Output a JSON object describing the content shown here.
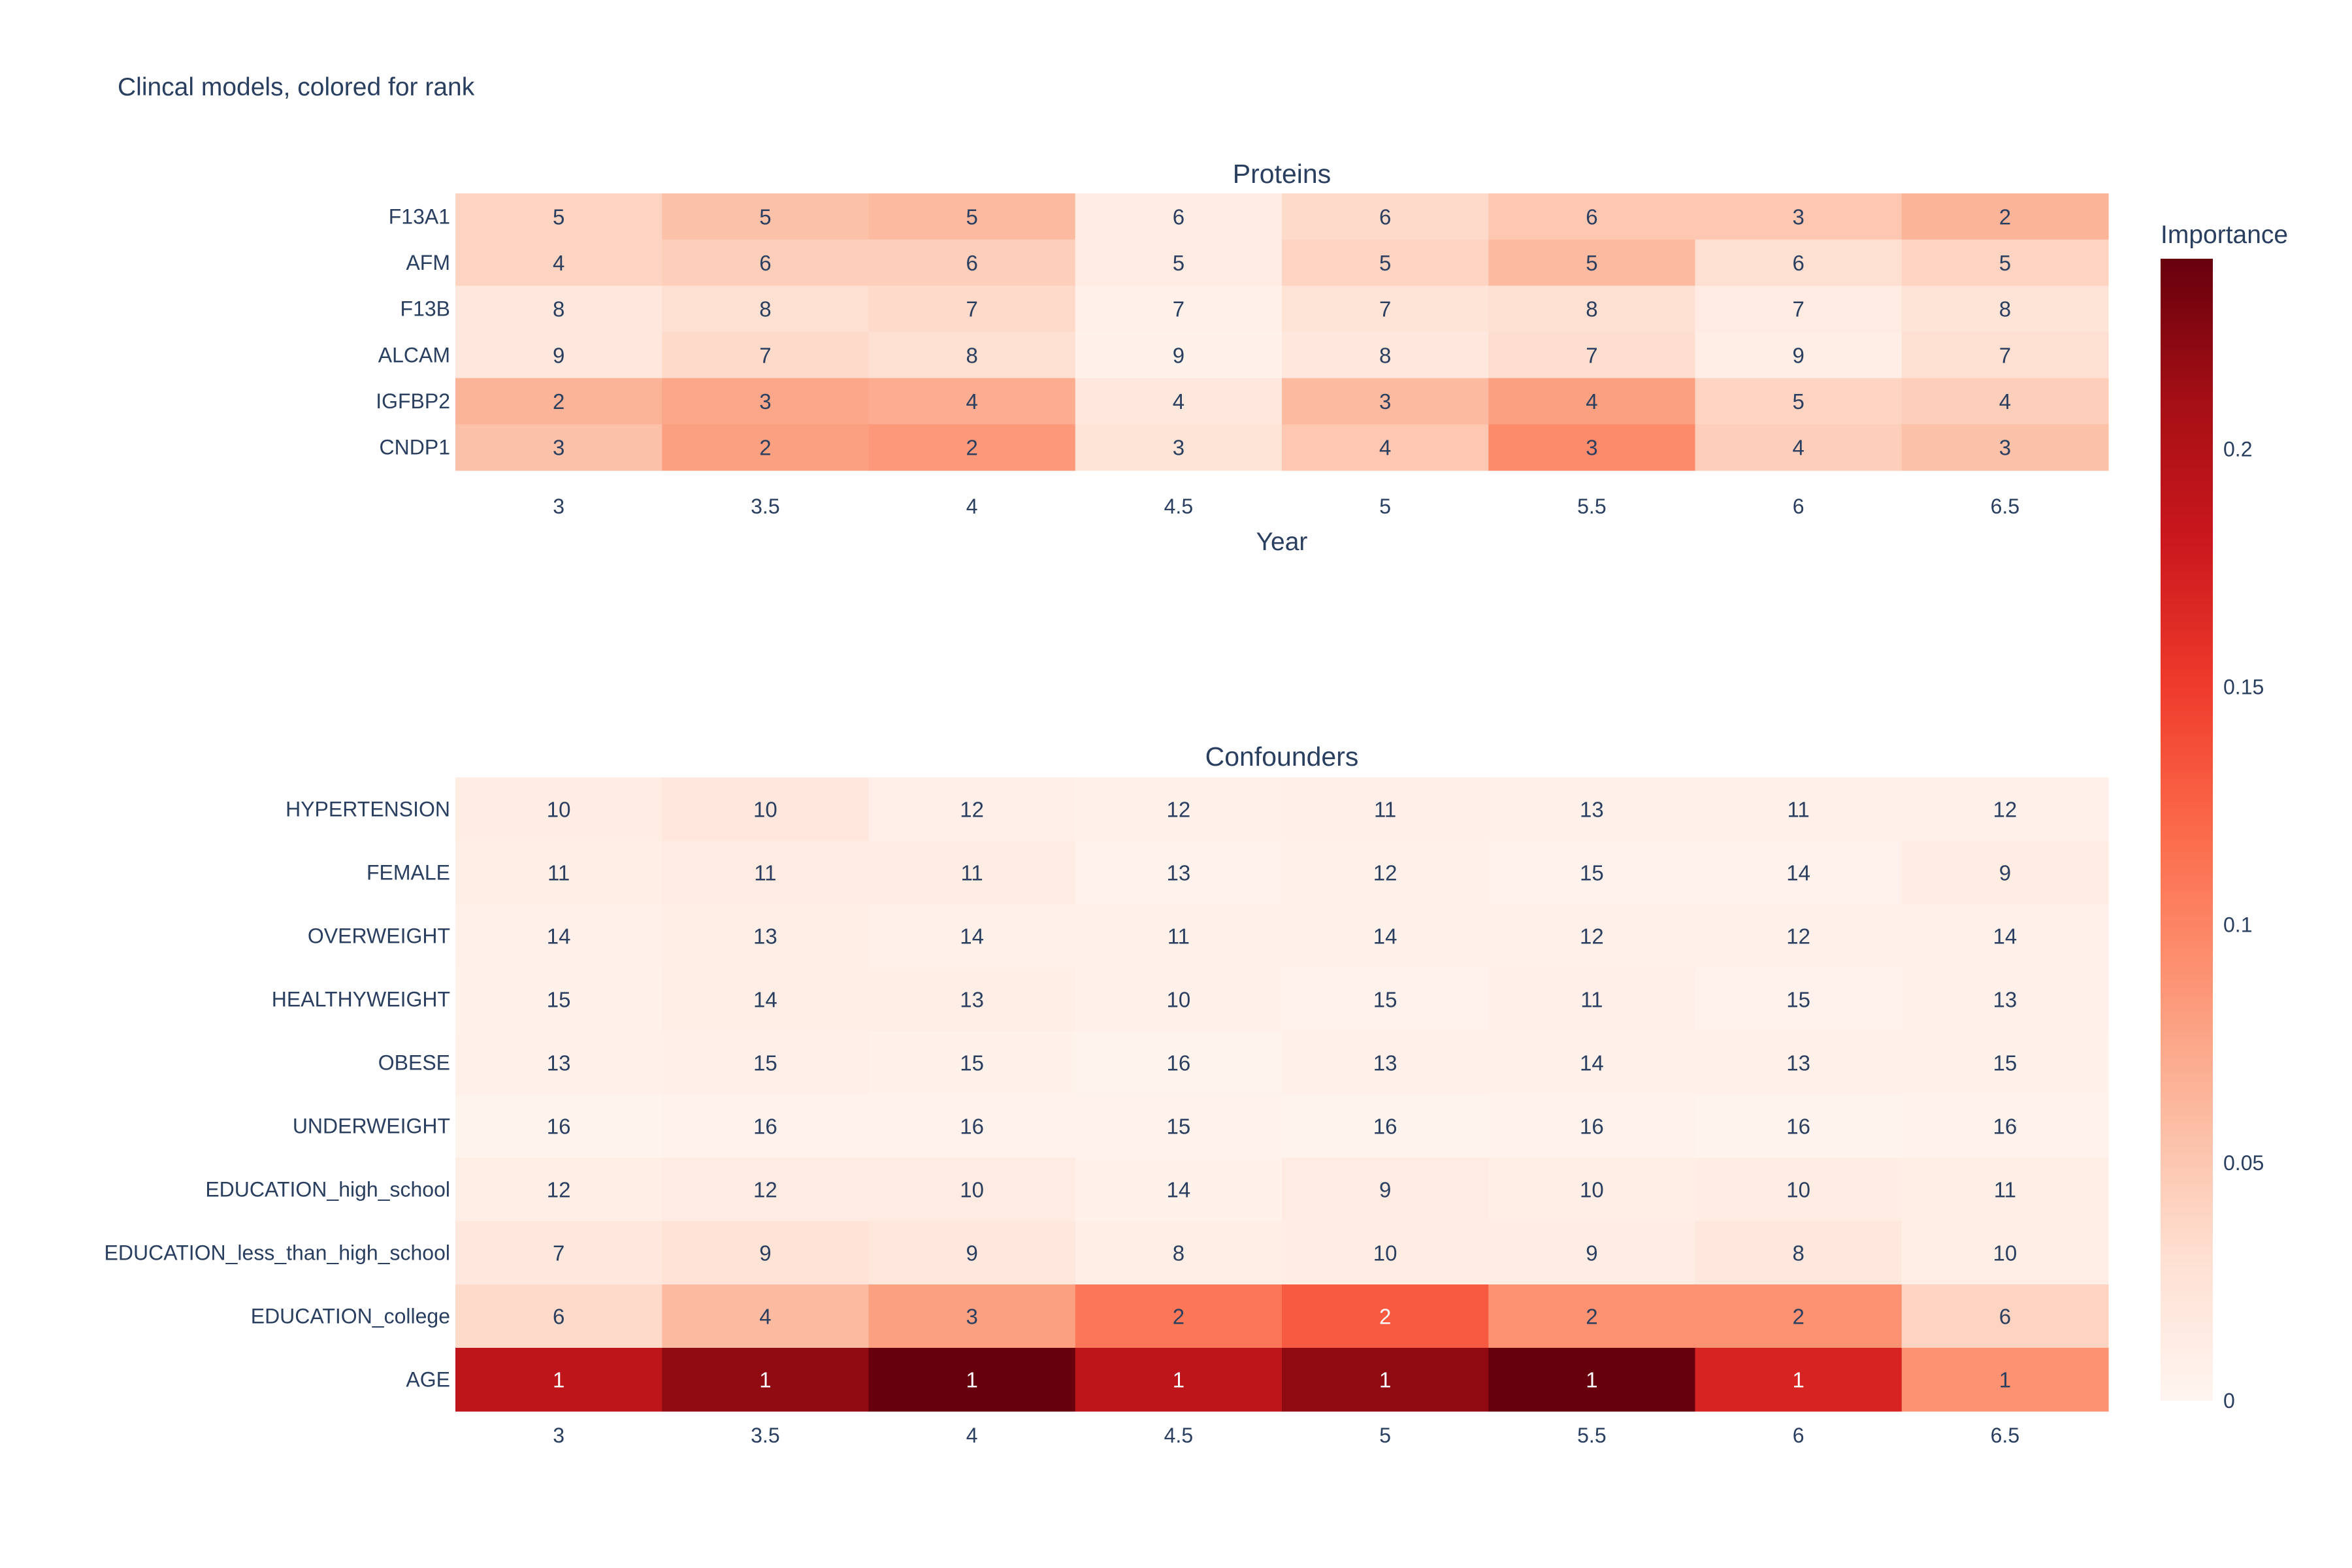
{
  "chart_data": {
    "type": "heatmap",
    "title": "Clincal models, colored for rank",
    "colorbar": {
      "title": "Importance",
      "range": [
        0,
        0.24
      ],
      "tickvals": [
        0,
        0.05,
        0.1,
        0.15,
        0.2
      ],
      "ticklabels": [
        "0",
        "0.05",
        "0.1",
        "0.15",
        "0.2"
      ],
      "colorscale": [
        "#fff5f0",
        "#fee0d2",
        "#fcbba1",
        "#fc9272",
        "#fb6a4a",
        "#ef3b2c",
        "#cb181d",
        "#a50f15",
        "#67000d"
      ]
    },
    "panels": [
      {
        "name": "Proteins",
        "xlabel": "Year",
        "x": [
          "3",
          "3.5",
          "4",
          "4.5",
          "5",
          "5.5",
          "6",
          "6.5"
        ],
        "y": [
          "F13A1",
          "AFM",
          "F13B",
          "ALCAM",
          "IGFBP2",
          "CNDP1"
        ],
        "ranks": [
          [
            5,
            5,
            5,
            6,
            6,
            6,
            3,
            2
          ],
          [
            4,
            6,
            6,
            5,
            5,
            5,
            6,
            5
          ],
          [
            8,
            8,
            7,
            7,
            7,
            8,
            7,
            8
          ],
          [
            9,
            7,
            8,
            9,
            8,
            7,
            9,
            7
          ],
          [
            2,
            3,
            4,
            4,
            3,
            4,
            5,
            4
          ],
          [
            3,
            2,
            2,
            3,
            4,
            3,
            4,
            3
          ]
        ],
        "importance": [
          [
            0.04,
            0.055,
            0.06,
            0.012,
            0.035,
            0.05,
            0.05,
            0.065
          ],
          [
            0.04,
            0.045,
            0.045,
            0.015,
            0.04,
            0.06,
            0.03,
            0.04
          ],
          [
            0.02,
            0.03,
            0.035,
            0.006,
            0.025,
            0.03,
            0.015,
            0.025
          ],
          [
            0.018,
            0.035,
            0.03,
            0.005,
            0.02,
            0.032,
            0.01,
            0.03
          ],
          [
            0.065,
            0.075,
            0.07,
            0.02,
            0.06,
            0.08,
            0.04,
            0.045
          ],
          [
            0.055,
            0.08,
            0.085,
            0.025,
            0.05,
            0.095,
            0.045,
            0.055
          ]
        ]
      },
      {
        "name": "Confounders",
        "xlabel": "",
        "x": [
          "3",
          "3.5",
          "4",
          "4.5",
          "5",
          "5.5",
          "6",
          "6.5"
        ],
        "y": [
          "HYPERTENSION",
          "FEMALE",
          "OVERWEIGHT",
          "HEALTHYWEIGHT",
          "OBESE",
          "UNDERWEIGHT",
          "EDUCATION_high_school",
          "EDUCATION_less_than_high_school",
          "EDUCATION_college",
          "AGE"
        ],
        "ranks": [
          [
            10,
            10,
            12,
            12,
            11,
            13,
            11,
            12
          ],
          [
            11,
            11,
            11,
            13,
            12,
            15,
            14,
            9
          ],
          [
            14,
            13,
            14,
            11,
            14,
            12,
            12,
            14
          ],
          [
            15,
            14,
            13,
            10,
            15,
            11,
            15,
            13
          ],
          [
            13,
            15,
            15,
            16,
            13,
            14,
            13,
            15
          ],
          [
            16,
            16,
            16,
            15,
            16,
            16,
            16,
            16
          ],
          [
            12,
            12,
            10,
            14,
            9,
            10,
            10,
            11
          ],
          [
            7,
            9,
            9,
            8,
            10,
            9,
            8,
            10
          ],
          [
            6,
            4,
            3,
            2,
            2,
            2,
            2,
            6
          ],
          [
            1,
            1,
            1,
            1,
            1,
            1,
            1,
            1
          ]
        ],
        "importance": [
          [
            0.012,
            0.018,
            0.008,
            0.006,
            0.008,
            0.006,
            0.007,
            0.006
          ],
          [
            0.01,
            0.015,
            0.012,
            0.004,
            0.006,
            0.004,
            0.004,
            0.012
          ],
          [
            0.006,
            0.01,
            0.007,
            0.006,
            0.005,
            0.007,
            0.006,
            0.006
          ],
          [
            0.005,
            0.01,
            0.01,
            0.007,
            0.004,
            0.008,
            0.004,
            0.007
          ],
          [
            0.006,
            0.008,
            0.005,
            0.003,
            0.006,
            0.007,
            0.006,
            0.005
          ],
          [
            0.003,
            0.004,
            0.004,
            0.004,
            0.003,
            0.004,
            0.003,
            0.004
          ],
          [
            0.01,
            0.014,
            0.014,
            0.005,
            0.015,
            0.01,
            0.012,
            0.01
          ],
          [
            0.02,
            0.026,
            0.02,
            0.01,
            0.012,
            0.012,
            0.018,
            0.01
          ],
          [
            0.035,
            0.06,
            0.08,
            0.11,
            0.13,
            0.09,
            0.09,
            0.04
          ],
          [
            0.19,
            0.22,
            0.24,
            0.19,
            0.22,
            0.24,
            0.17,
            0.09
          ]
        ]
      }
    ]
  }
}
